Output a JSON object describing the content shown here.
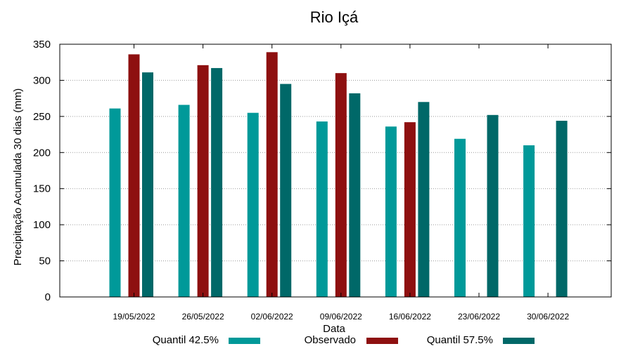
{
  "chart_data": {
    "type": "bar",
    "title": "Rio Içá",
    "xlabel": "Data",
    "ylabel": "Precipitação Acumulada 30 dias (mm)",
    "ylim": [
      0,
      350
    ],
    "yticks": [
      0,
      50,
      100,
      150,
      200,
      250,
      300,
      350
    ],
    "grid": true,
    "legend_position": "bottom",
    "categories": [
      "19/05/2022",
      "26/05/2022",
      "02/06/2022",
      "09/06/2022",
      "16/06/2022",
      "23/06/2022",
      "30/06/2022"
    ],
    "series": [
      {
        "name": "Quantil 42.5%",
        "color": "#009999",
        "values": [
          261,
          266,
          255,
          243,
          236,
          219,
          210
        ]
      },
      {
        "name": "Observado",
        "color": "#8e1010",
        "values": [
          336,
          321,
          339,
          310,
          242,
          null,
          null
        ]
      },
      {
        "name": "Quantil 57.5%",
        "color": "#006868",
        "values": [
          311,
          317,
          295,
          282,
          270,
          252,
          244
        ]
      }
    ]
  }
}
